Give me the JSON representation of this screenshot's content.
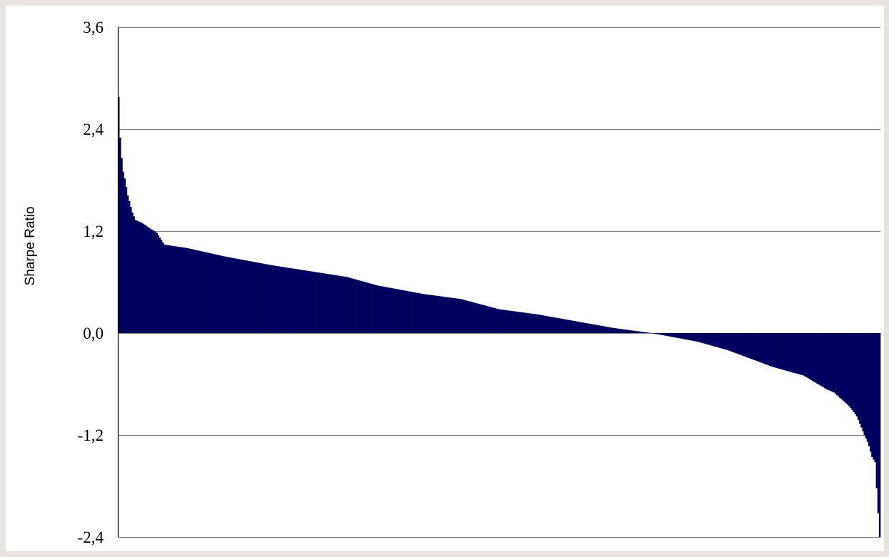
{
  "chart_data": {
    "type": "bar",
    "title": "",
    "xlabel": "",
    "ylabel": "Sharpe Ratio",
    "ylim": [
      -2.4,
      3.6
    ],
    "yticks": [
      3.6,
      2.4,
      1.2,
      0.0,
      -1.2,
      -2.4
    ],
    "ytick_labels": [
      "3,6",
      "2,4",
      "1,2",
      "0,0",
      "-1,2",
      "-2,4"
    ],
    "grid": true,
    "legend": "none",
    "sorted": "descending",
    "n_bars": 500,
    "quantiles": [
      [
        0.0,
        2.78
      ],
      [
        0.002,
        2.3
      ],
      [
        0.005,
        1.94
      ],
      [
        0.008,
        1.82
      ],
      [
        0.012,
        1.62
      ],
      [
        0.018,
        1.42
      ],
      [
        0.022,
        1.33
      ],
      [
        0.03,
        1.3
      ],
      [
        0.04,
        1.24
      ],
      [
        0.05,
        1.18
      ],
      [
        0.06,
        1.04
      ],
      [
        0.09,
        1.0
      ],
      [
        0.14,
        0.9
      ],
      [
        0.2,
        0.8
      ],
      [
        0.3,
        0.66
      ],
      [
        0.34,
        0.56
      ],
      [
        0.4,
        0.46
      ],
      [
        0.45,
        0.4
      ],
      [
        0.5,
        0.28
      ],
      [
        0.55,
        0.22
      ],
      [
        0.6,
        0.14
      ],
      [
        0.65,
        0.06
      ],
      [
        0.7,
        0.0
      ],
      [
        0.76,
        -0.1
      ],
      [
        0.8,
        -0.2
      ],
      [
        0.86,
        -0.4
      ],
      [
        0.9,
        -0.5
      ],
      [
        0.93,
        -0.66
      ],
      [
        0.94,
        -0.7
      ],
      [
        0.96,
        -0.86
      ],
      [
        0.97,
        -0.98
      ],
      [
        0.98,
        -1.2
      ],
      [
        0.985,
        -1.3
      ],
      [
        0.99,
        -1.46
      ],
      [
        0.994,
        -1.52
      ],
      [
        0.997,
        -1.98
      ],
      [
        1.0,
        -2.4
      ]
    ],
    "colors": {
      "bars": "#00005e",
      "grid": "#7f7f7f",
      "axis": "#000000",
      "background": "#ffffff"
    }
  }
}
